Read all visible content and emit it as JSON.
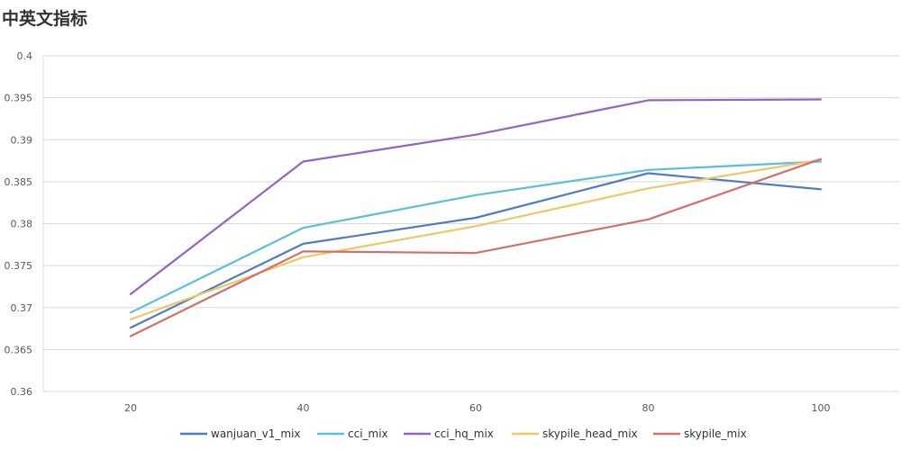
{
  "chart_data": {
    "type": "line",
    "title": "中英文指标",
    "x": [
      20,
      40,
      60,
      80,
      100
    ],
    "x_tick_labels": [
      "20",
      "40",
      "60",
      "80",
      "100"
    ],
    "y_tick_labels": [
      "0.36",
      "0.365",
      "0.37",
      "0.375",
      "0.38",
      "0.385",
      "0.39",
      "0.395",
      "0.4"
    ],
    "ylim": [
      0.36,
      0.4
    ],
    "grid": true,
    "legend_position": "bottom",
    "series": [
      {
        "name": "wanjuan_v1_mix",
        "color": "#4f7bc0",
        "values": [
          0.3676,
          0.3776,
          0.3807,
          0.386,
          0.3841
        ]
      },
      {
        "name": "cci_mix",
        "color": "#58c0d8",
        "values": [
          0.3694,
          0.3795,
          0.3834,
          0.3864,
          0.3874
        ]
      },
      {
        "name": "cci_hq_mix",
        "color": "#9563bd",
        "values": [
          0.3716,
          0.3874,
          0.3906,
          0.3947,
          0.3948
        ]
      },
      {
        "name": "skypile_head_mix",
        "color": "#efc766",
        "values": [
          0.3686,
          0.376,
          0.3797,
          0.3842,
          0.3876
        ]
      },
      {
        "name": "skypile_mix",
        "color": "#d2706b",
        "values": [
          0.3666,
          0.3767,
          0.3765,
          0.3805,
          0.3877
        ]
      }
    ]
  }
}
